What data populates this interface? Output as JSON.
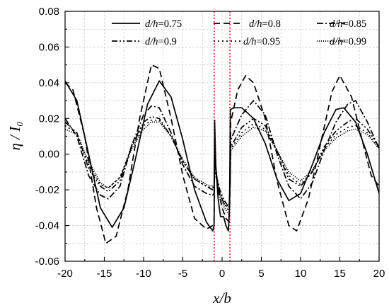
{
  "chart_data": {
    "type": "line",
    "title": "",
    "xlabel": "x/b",
    "ylabel": "η / I₀",
    "xlim": [
      -20,
      20
    ],
    "ylim": [
      -0.06,
      0.08
    ],
    "x_ticks": [
      -20,
      -15,
      -10,
      -5,
      0,
      5,
      10,
      15,
      20
    ],
    "y_ticks": [
      -0.06,
      -0.04,
      -0.02,
      0.0,
      0.02,
      0.04,
      0.06,
      0.08
    ],
    "x_tick_labels": [
      "-20",
      "-15",
      "-10",
      "-5",
      "0",
      "5",
      "10",
      "15",
      "20"
    ],
    "y_tick_labels": [
      "-0.06",
      "-0.04",
      "-0.02",
      "0.00",
      "0.02",
      "0.04",
      "0.06",
      "0.08"
    ],
    "grid": true,
    "legend_position": "top-right",
    "reference_lines": [
      {
        "x": -1,
        "color": "#e02020",
        "style": "dotted"
      },
      {
        "x": 1,
        "color": "#e02020",
        "style": "dotted"
      }
    ],
    "series": [
      {
        "name": "d/h=0.75",
        "label_italic": "d/h",
        "label_value": "=0.75",
        "dash": "",
        "points": [
          [
            -20,
            0.041
          ],
          [
            -18.5,
            0.03
          ],
          [
            -17,
            0.0
          ],
          [
            -15.5,
            -0.03
          ],
          [
            -14,
            -0.041
          ],
          [
            -12.5,
            -0.03
          ],
          [
            -11,
            -0.002
          ],
          [
            -9.5,
            0.028
          ],
          [
            -8,
            0.041
          ],
          [
            -6.5,
            0.032
          ],
          [
            -5,
            0.008
          ],
          [
            -3.5,
            -0.02
          ],
          [
            -2,
            -0.038
          ],
          [
            -1.2,
            -0.043
          ],
          [
            -1.02,
            -0.04
          ],
          [
            -0.95,
            0.019
          ],
          [
            -0.8,
            -0.006
          ],
          [
            -0.5,
            -0.025
          ],
          [
            -0.2,
            -0.035
          ],
          [
            0.2,
            -0.035
          ],
          [
            0.5,
            -0.04
          ],
          [
            0.8,
            -0.043
          ],
          [
            0.95,
            -0.03
          ],
          [
            1.05,
            0.025
          ],
          [
            1.5,
            0.026
          ],
          [
            2.5,
            0.026
          ],
          [
            4,
            0.02
          ],
          [
            5.5,
            0.006
          ],
          [
            7,
            -0.014
          ],
          [
            8.5,
            -0.026
          ],
          [
            10,
            -0.022
          ],
          [
            11.5,
            -0.006
          ],
          [
            13,
            0.012
          ],
          [
            14.5,
            0.025
          ],
          [
            15.5,
            0.026
          ],
          [
            17,
            0.018
          ],
          [
            18.5,
            0.0
          ],
          [
            20,
            -0.022
          ]
        ]
      },
      {
        "name": "d/h=0.8",
        "label_italic": "d/h",
        "label_value": "=0.8",
        "dash": "9 5",
        "points": [
          [
            -20,
            0.04
          ],
          [
            -19,
            0.036
          ],
          [
            -17.5,
            0.01
          ],
          [
            -16,
            -0.03
          ],
          [
            -14.8,
            -0.05
          ],
          [
            -13.5,
            -0.046
          ],
          [
            -12,
            -0.02
          ],
          [
            -10.5,
            0.02
          ],
          [
            -9,
            0.05
          ],
          [
            -8,
            0.048
          ],
          [
            -6.5,
            0.02
          ],
          [
            -5,
            -0.012
          ],
          [
            -3.5,
            -0.036
          ],
          [
            -2,
            -0.042
          ],
          [
            -1.2,
            -0.04
          ],
          [
            -1.02,
            -0.038
          ],
          [
            -0.95,
            0.01
          ],
          [
            -0.8,
            -0.008
          ],
          [
            -0.4,
            -0.022
          ],
          [
            0,
            -0.03
          ],
          [
            0.5,
            -0.036
          ],
          [
            0.9,
            -0.038
          ],
          [
            1.02,
            -0.02
          ],
          [
            1.1,
            0.018
          ],
          [
            2,
            0.036
          ],
          [
            3,
            0.044
          ],
          [
            4,
            0.04
          ],
          [
            5.5,
            0.02
          ],
          [
            7,
            -0.015
          ],
          [
            8.5,
            -0.04
          ],
          [
            9.5,
            -0.043
          ],
          [
            11,
            -0.025
          ],
          [
            12.5,
            0.005
          ],
          [
            14,
            0.035
          ],
          [
            15,
            0.044
          ],
          [
            16.5,
            0.032
          ],
          [
            18,
            0.005
          ],
          [
            19,
            -0.012
          ],
          [
            20,
            -0.018
          ]
        ]
      },
      {
        "name": "d/h=0.85",
        "label_italic": "d/h",
        "label_value": "=0.85",
        "dash": "9 3 2 3",
        "points": [
          [
            -20,
            0.02
          ],
          [
            -18.5,
            0.01
          ],
          [
            -17,
            -0.012
          ],
          [
            -15.5,
            -0.023
          ],
          [
            -14.5,
            -0.025
          ],
          [
            -13,
            -0.018
          ],
          [
            -11.5,
            0.005
          ],
          [
            -10,
            0.022
          ],
          [
            -9,
            0.027
          ],
          [
            -8,
            0.026
          ],
          [
            -6.5,
            0.012
          ],
          [
            -5,
            -0.006
          ],
          [
            -3.5,
            -0.018
          ],
          [
            -2,
            -0.022
          ],
          [
            -1.2,
            -0.023
          ],
          [
            -1.02,
            -0.022
          ],
          [
            -0.95,
            0.006
          ],
          [
            -0.8,
            -0.01
          ],
          [
            -0.3,
            -0.022
          ],
          [
            0.3,
            -0.028
          ],
          [
            0.9,
            -0.03
          ],
          [
            1.02,
            -0.018
          ],
          [
            1.1,
            0.008
          ],
          [
            2.5,
            0.022
          ],
          [
            4,
            0.03
          ],
          [
            5.5,
            0.022
          ],
          [
            7,
            0.0
          ],
          [
            8.5,
            -0.018
          ],
          [
            10,
            -0.025
          ],
          [
            11.5,
            -0.016
          ],
          [
            13,
            0.002
          ],
          [
            14.5,
            0.018
          ],
          [
            16,
            0.028
          ],
          [
            17,
            0.03
          ],
          [
            18.5,
            0.018
          ],
          [
            20,
            0.003
          ]
        ]
      },
      {
        "name": "d/h=0.9",
        "label_italic": "d/h",
        "label_value": "=0.9",
        "dash": "8 3 2 3 2 3",
        "points": [
          [
            -20,
            0.018
          ],
          [
            -18.5,
            0.012
          ],
          [
            -17,
            -0.008
          ],
          [
            -15.5,
            -0.018
          ],
          [
            -14.5,
            -0.021
          ],
          [
            -13,
            -0.015
          ],
          [
            -11.5,
            0.005
          ],
          [
            -10,
            0.018
          ],
          [
            -9,
            0.021
          ],
          [
            -8,
            0.02
          ],
          [
            -6.5,
            0.01
          ],
          [
            -5,
            -0.004
          ],
          [
            -3.5,
            -0.014
          ],
          [
            -2,
            -0.018
          ],
          [
            -1.2,
            -0.02
          ],
          [
            -1.02,
            -0.019
          ],
          [
            -0.95,
            0.004
          ],
          [
            -0.8,
            -0.01
          ],
          [
            -0.3,
            -0.02
          ],
          [
            0.3,
            -0.026
          ],
          [
            0.9,
            -0.03
          ],
          [
            1.02,
            -0.015
          ],
          [
            1.1,
            0.004
          ],
          [
            2.5,
            0.015
          ],
          [
            4,
            0.02
          ],
          [
            5.5,
            0.016
          ],
          [
            7,
            0.002
          ],
          [
            8.5,
            -0.014
          ],
          [
            10,
            -0.018
          ],
          [
            11.5,
            -0.01
          ],
          [
            13,
            0.004
          ],
          [
            14.5,
            0.013
          ],
          [
            16,
            0.018
          ],
          [
            17,
            0.02
          ],
          [
            18.5,
            0.014
          ],
          [
            20,
            0.004
          ]
        ]
      },
      {
        "name": "d/h=0.95",
        "label_italic": "d/h",
        "label_value": "=0.95",
        "dash": "2 4",
        "points": [
          [
            -20,
            0.016
          ],
          [
            -18.5,
            0.012
          ],
          [
            -17,
            -0.006
          ],
          [
            -15.5,
            -0.017
          ],
          [
            -14.5,
            -0.019
          ],
          [
            -13,
            -0.013
          ],
          [
            -11.5,
            0.004
          ],
          [
            -10,
            0.016
          ],
          [
            -9,
            0.019
          ],
          [
            -8,
            0.019
          ],
          [
            -6.5,
            0.01
          ],
          [
            -5,
            -0.004
          ],
          [
            -3.5,
            -0.014
          ],
          [
            -2,
            -0.018
          ],
          [
            -1.2,
            -0.019
          ],
          [
            -1.02,
            -0.018
          ],
          [
            -0.95,
            0.003
          ],
          [
            -0.8,
            -0.012
          ],
          [
            -0.3,
            -0.022
          ],
          [
            0.3,
            -0.028
          ],
          [
            0.9,
            -0.032
          ],
          [
            1.02,
            -0.015
          ],
          [
            1.1,
            0.003
          ],
          [
            2.5,
            0.012
          ],
          [
            4,
            0.017
          ],
          [
            5.5,
            0.014
          ],
          [
            7,
            0.002
          ],
          [
            8.5,
            -0.012
          ],
          [
            10,
            -0.017
          ],
          [
            11.5,
            -0.01
          ],
          [
            13,
            0.003
          ],
          [
            14.5,
            0.011
          ],
          [
            16,
            0.015
          ],
          [
            17,
            0.016
          ],
          [
            18.5,
            0.012
          ],
          [
            20,
            0.003
          ]
        ]
      },
      {
        "name": "d/h=0.99",
        "label_italic": "d/h",
        "label_value": "=0.99",
        "dash": "1.2 1.8",
        "points": [
          [
            -20,
            0.014
          ],
          [
            -18.5,
            0.011
          ],
          [
            -17,
            -0.004
          ],
          [
            -15.5,
            -0.016
          ],
          [
            -14.5,
            -0.019
          ],
          [
            -13,
            -0.013
          ],
          [
            -11.5,
            0.003
          ],
          [
            -10,
            0.014
          ],
          [
            -9,
            0.018
          ],
          [
            -8,
            0.018
          ],
          [
            -6.5,
            0.01
          ],
          [
            -5,
            -0.003
          ],
          [
            -3.5,
            -0.013
          ],
          [
            -2,
            -0.017
          ],
          [
            -1.2,
            -0.018
          ],
          [
            -1.02,
            -0.017
          ],
          [
            -0.95,
            0.002
          ],
          [
            -0.8,
            -0.012
          ],
          [
            -0.3,
            -0.024
          ],
          [
            0.3,
            -0.03
          ],
          [
            0.9,
            -0.034
          ],
          [
            1.02,
            -0.016
          ],
          [
            1.1,
            0.002
          ],
          [
            2.5,
            0.01
          ],
          [
            4,
            0.015
          ],
          [
            5.5,
            0.013
          ],
          [
            7,
            0.002
          ],
          [
            8.5,
            -0.01
          ],
          [
            10,
            -0.015
          ],
          [
            11.5,
            -0.009
          ],
          [
            13,
            0.002
          ],
          [
            14.5,
            0.009
          ],
          [
            16,
            0.013
          ],
          [
            17,
            0.014
          ],
          [
            18.5,
            0.011
          ],
          [
            20,
            0.003
          ]
        ]
      }
    ]
  }
}
